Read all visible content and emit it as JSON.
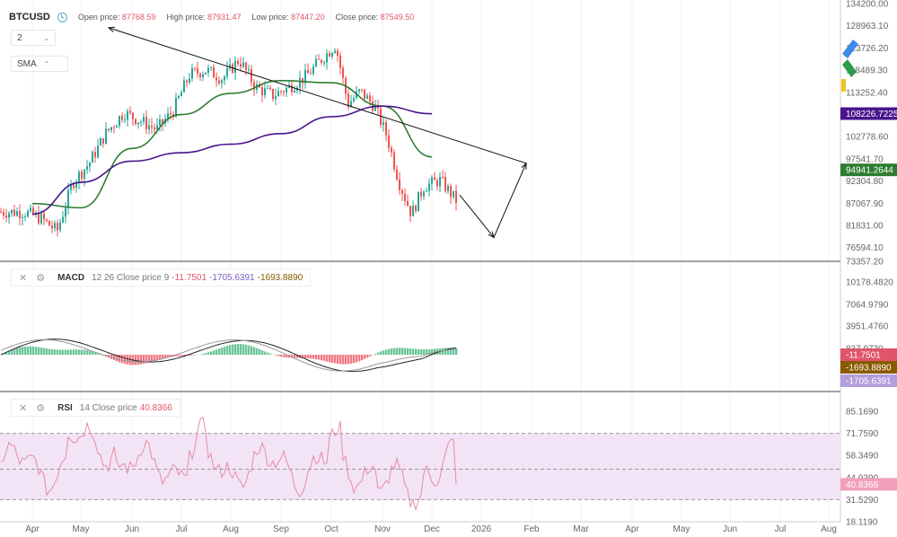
{
  "header": {
    "symbol": "BTCUSD",
    "open_label": "Open price:",
    "open_value": "87768.59",
    "high_label": "High price:",
    "high_value": "87931.47",
    "low_label": "Low price:",
    "low_value": "87447.20",
    "close_label": "Close price:",
    "close_value": "87549.50"
  },
  "controls": {
    "interval": "2",
    "overlay": "SMA"
  },
  "macd_legend": {
    "name": "MACD",
    "params": "12 26 Close price 9",
    "v1": "-11.7501",
    "v2": "-1705.6391",
    "v3": "-1693.8890"
  },
  "rsi_legend": {
    "name": "RSI",
    "params": "14 Close price",
    "value": "40.8366"
  },
  "colors": {
    "up": "#26a69a",
    "down": "#ef5350",
    "sma_fast": "#2e7d32",
    "sma_slow": "#4a148c",
    "rsi_line": "#e48da3",
    "rsi_band": "#f3e3f6"
  },
  "chart_data": [
    {
      "type": "candlestick",
      "title": "BTCUSD",
      "x_months": [
        "Apr",
        "May",
        "Jun",
        "Jul",
        "Aug",
        "Sep",
        "Oct",
        "Nov",
        "Dec",
        "2026",
        "Feb",
        "Mar",
        "Apr",
        "May",
        "Jun",
        "Jul",
        "Aug"
      ],
      "y_ticks": [
        "134200.00",
        "128963.10",
        "123726.20",
        "118489.30",
        "113252.40",
        "108226.7225",
        "102778.60",
        "97541.70",
        "94941.2644",
        "92304.80",
        "87067.90",
        "81831.00",
        "76594.10",
        "73357.20"
      ],
      "ylim": [
        73357.2,
        134200
      ],
      "price_path": [
        [
          "Apr",
          85000
        ],
        [
          "Apr",
          83500
        ],
        [
          "Apr",
          80500
        ],
        [
          "May",
          92000
        ],
        [
          "May",
          96500
        ],
        [
          "May",
          103500
        ],
        [
          "Jun",
          108500
        ],
        [
          "Jun",
          106500
        ],
        [
          "Jun",
          104500
        ],
        [
          "Jul",
          109000
        ],
        [
          "Jul",
          117500
        ],
        [
          "Jul",
          118500
        ],
        [
          "Aug",
          116500
        ],
        [
          "Aug",
          121000
        ],
        [
          "Aug",
          114500
        ],
        [
          "Sep",
          112500
        ],
        [
          "Sep",
          114500
        ],
        [
          "Sep",
          117000
        ],
        [
          "Oct",
          121500
        ],
        [
          "Oct",
          124500
        ],
        [
          "Oct",
          110500
        ],
        [
          "Oct",
          113500
        ],
        [
          "Nov",
          110000
        ],
        [
          "Nov",
          103000
        ],
        [
          "Nov",
          92000
        ],
        [
          "Nov",
          84500
        ],
        [
          "Dec",
          91000
        ],
        [
          "Dec",
          92500
        ],
        [
          "Dec",
          87549.5
        ]
      ],
      "series": [
        {
          "name": "SMA fast",
          "values": [
            [
              "Apr",
              87000
            ],
            [
              "May",
              86000
            ],
            [
              "Jun",
              100000
            ],
            [
              "Jul",
              108000
            ],
            [
              "Aug",
              113000
            ],
            [
              "Sep",
              116000
            ],
            [
              "Oct",
              115500
            ],
            [
              "Nov",
              110000
            ],
            [
              "Dec",
              98000
            ]
          ]
        },
        {
          "name": "SMA slow",
          "values": [
            [
              "Apr",
              84500
            ],
            [
              "May",
              92000
            ],
            [
              "Jun",
              97000
            ],
            [
              "Jul",
              99000
            ],
            [
              "Aug",
              101000
            ],
            [
              "Sep",
              103500
            ],
            [
              "Oct",
              107500
            ],
            [
              "Nov",
              110000
            ],
            [
              "Dec",
              108200
            ]
          ]
        }
      ],
      "price_labels": [
        {
          "value": "108226.7225",
          "color": "#4a148c"
        },
        {
          "value": "94941.2644",
          "color": "#2e7d32"
        }
      ],
      "annotation": {
        "type": "arrow",
        "points": [
          [
            "Dec",
            89000
          ],
          [
            "2026",
            79000
          ],
          [
            "Feb",
            96500
          ],
          [
            "May",
            128500
          ]
        ]
      }
    },
    {
      "type": "bar",
      "title": "MACD",
      "y_ticks": [
        "10178.4820",
        "7064.9790",
        "3951.4760",
        "837.9730",
        "-1693.8890",
        "-2299.0330"
      ],
      "price_labels": [
        {
          "value": "-11.7501",
          "color": "#e0556a"
        },
        {
          "value": "-1693.8890",
          "color": "#8a5a00"
        },
        {
          "value": "-1705.6391",
          "color": "#b39ddb"
        }
      ]
    },
    {
      "type": "line",
      "title": "RSI",
      "y_ticks": [
        "85.1690",
        "71.7590",
        "58.3490",
        "44.9390",
        "31.5290",
        "18.1190"
      ],
      "ylim": [
        18.119,
        85.169
      ],
      "band": [
        31.529,
        71.759
      ],
      "midline": 50,
      "last_value": "40.8366"
    }
  ]
}
